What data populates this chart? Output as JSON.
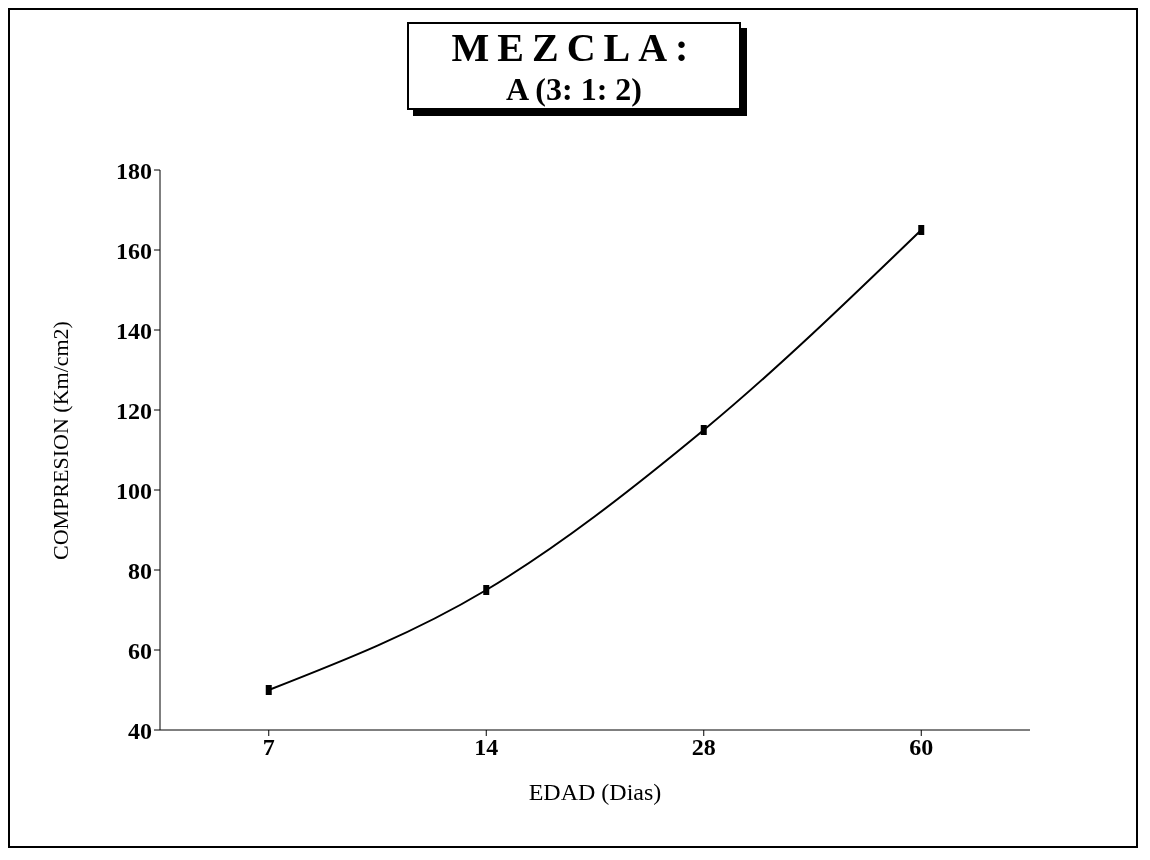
{
  "chart_data": {
    "type": "line",
    "title": "MEZCLA:",
    "subtitle": "A (3: 1: 2)",
    "xlabel": "EDAD (Dias)",
    "ylabel": "COMPRESION (Km/cm2)",
    "categories": [
      "7",
      "14",
      "28",
      "60"
    ],
    "values": [
      50,
      75,
      115,
      165
    ],
    "color": "#000000",
    "ylim": [
      40,
      180
    ],
    "yticks": [
      40,
      60,
      80,
      100,
      120,
      140,
      160,
      180
    ],
    "marker": "square",
    "line_style": "solid",
    "grid": false,
    "legend": false
  }
}
